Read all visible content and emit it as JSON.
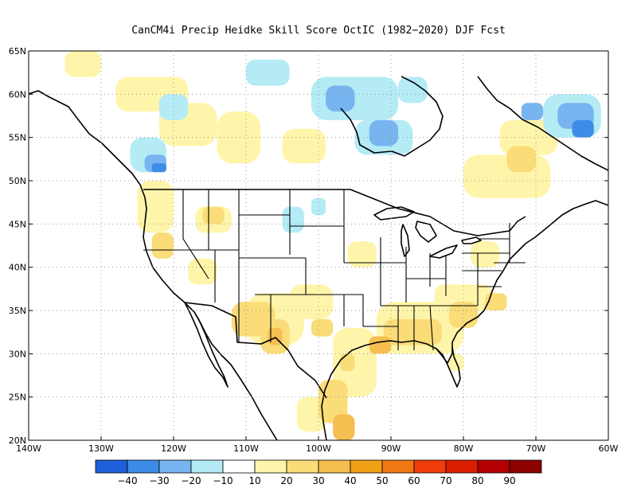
{
  "title": "CanCM4i Precip Heidke Skill Score OctIC (1982−2020) DJF Fcst",
  "map": {
    "lon_range": [
      -140,
      -60
    ],
    "lat_range": [
      20,
      65
    ],
    "lat_ticks": [
      {
        "lat": 65,
        "label": "65N"
      },
      {
        "lat": 60,
        "label": "60N"
      },
      {
        "lat": 55,
        "label": "55N"
      },
      {
        "lat": 50,
        "label": "50N"
      },
      {
        "lat": 45,
        "label": "45N"
      },
      {
        "lat": 40,
        "label": "40N"
      },
      {
        "lat": 35,
        "label": "35N"
      },
      {
        "lat": 30,
        "label": "30N"
      },
      {
        "lat": 25,
        "label": "25N"
      },
      {
        "lat": 20,
        "label": "20N"
      }
    ],
    "lon_ticks": [
      {
        "lon": -140,
        "label": "140W"
      },
      {
        "lon": -130,
        "label": "130W"
      },
      {
        "lon": -120,
        "label": "120W"
      },
      {
        "lon": -110,
        "label": "110W"
      },
      {
        "lon": -100,
        "label": "100W"
      },
      {
        "lon": -90,
        "label": "90W"
      },
      {
        "lon": -80,
        "label": "80W"
      },
      {
        "lon": -70,
        "label": "70W"
      },
      {
        "lon": -60,
        "label": "60W"
      }
    ],
    "gridlines": "dotted"
  },
  "colorbar": {
    "colors": [
      "#1f5fdc",
      "#3c8ce8",
      "#78b4f0",
      "#b4ebf5",
      "#ffffff",
      "#fff5aa",
      "#fadc78",
      "#f5be50",
      "#f0a014",
      "#f07814",
      "#f03c0a",
      "#dc1e00",
      "#b40000",
      "#8c0000"
    ],
    "labels": [
      "−40",
      "−30",
      "−20",
      "−10",
      "10",
      "20",
      "30",
      "40",
      "50",
      "60",
      "70",
      "80",
      "90"
    ]
  },
  "fields": [
    {
      "level": 1,
      "color": "#fff5aa",
      "cells": [
        [
          -135,
          62,
          5,
          3
        ],
        [
          -128,
          58,
          10,
          4
        ],
        [
          -122,
          54,
          8,
          5
        ],
        [
          -114,
          52,
          6,
          6
        ],
        [
          -125,
          44,
          5,
          6
        ],
        [
          -117,
          44,
          5,
          3
        ],
        [
          -105,
          52,
          6,
          4
        ],
        [
          -80,
          48,
          12,
          5
        ],
        [
          -75,
          53,
          8,
          4
        ],
        [
          -118,
          38,
          4,
          3
        ],
        [
          -110,
          31,
          8,
          6
        ],
        [
          -104,
          34,
          6,
          4
        ],
        [
          -98,
          25,
          6,
          8
        ],
        [
          -103,
          21,
          4,
          4
        ],
        [
          -92,
          30,
          12,
          6
        ],
        [
          -84,
          35,
          8,
          3
        ],
        [
          -79,
          40,
          4,
          3
        ],
        [
          -96,
          40,
          4,
          3
        ],
        [
          -82,
          28,
          2,
          2
        ]
      ]
    },
    {
      "level": 2,
      "color": "#fadc78",
      "cells": [
        [
          -112,
          32,
          6,
          4
        ],
        [
          -108,
          30,
          4,
          4
        ],
        [
          -91,
          31,
          8,
          3
        ],
        [
          -82,
          33,
          4,
          3
        ],
        [
          -77,
          35,
          3,
          2
        ],
        [
          -100,
          22,
          4,
          5
        ],
        [
          -123,
          41,
          3,
          3
        ],
        [
          -116,
          45,
          3,
          2
        ],
        [
          -101,
          32,
          3,
          2
        ],
        [
          -74,
          51,
          4,
          3
        ],
        [
          -97,
          28,
          2,
          2
        ]
      ]
    },
    {
      "level": 3,
      "color": "#f5be50",
      "cells": [
        [
          -93,
          30,
          3,
          2
        ],
        [
          -98,
          20,
          3,
          3
        ],
        [
          -107,
          31,
          2,
          2
        ]
      ]
    },
    {
      "level": -1,
      "color": "#b4ebf5",
      "cells": [
        [
          -122,
          57,
          4,
          3
        ],
        [
          -110,
          61,
          6,
          3
        ],
        [
          -101,
          57,
          12,
          5
        ],
        [
          -95,
          53,
          8,
          4
        ],
        [
          -69,
          55,
          8,
          5
        ],
        [
          -126,
          51,
          5,
          4
        ],
        [
          -105,
          44,
          3,
          3
        ],
        [
          -101,
          46,
          2,
          2
        ],
        [
          -89,
          59,
          4,
          3
        ]
      ]
    },
    {
      "level": -2,
      "color": "#78b4f0",
      "cells": [
        [
          -99,
          58,
          4,
          3
        ],
        [
          -93,
          54,
          4,
          3
        ],
        [
          -67,
          56,
          5,
          3
        ],
        [
          -124,
          51,
          3,
          2
        ],
        [
          -72,
          57,
          3,
          2
        ]
      ]
    },
    {
      "level": -3,
      "color": "#3c8ce8",
      "cells": [
        [
          -65,
          55,
          3,
          2
        ],
        [
          -123,
          51,
          2,
          1
        ]
      ]
    }
  ]
}
